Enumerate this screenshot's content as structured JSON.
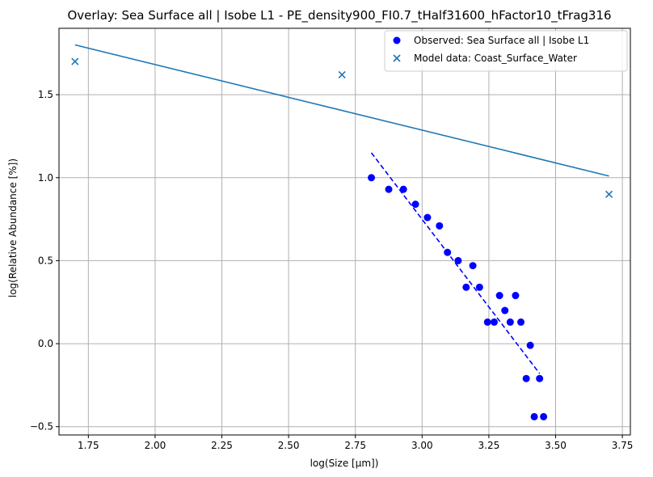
{
  "chart_data": {
    "type": "scatter",
    "title": "Overlay: Sea Surface all | Isobe L1 - PE_density900_FI0.7_tHalf31600_hFactor10_tFrag316",
    "xlabel": "log(Size [μm])",
    "ylabel": "log(Relative Abundance [%])",
    "xlim": [
      1.64,
      3.78
    ],
    "ylim": [
      -0.55,
      1.9
    ],
    "x_ticks": [
      1.75,
      2.0,
      2.25,
      2.5,
      2.75,
      3.0,
      3.25,
      3.5,
      3.75
    ],
    "x_tick_labels": [
      "1.75",
      "2.00",
      "2.25",
      "2.50",
      "2.75",
      "3.00",
      "3.25",
      "3.50",
      "3.75"
    ],
    "y_ticks": [
      -0.5,
      0.0,
      0.5,
      1.0,
      1.5
    ],
    "y_tick_labels": [
      "−0.5",
      "0.0",
      "0.5",
      "1.0",
      "1.5"
    ],
    "grid": true,
    "legend_position": "top-right",
    "colors": {
      "observed": "#0000ff",
      "model": "#1f77b4",
      "grid": "#b0b0b0"
    },
    "series": [
      {
        "name": "Observed: Sea Surface all | Isobe L1",
        "kind": "scatter",
        "marker": "circle",
        "x": [
          2.81,
          2.875,
          2.93,
          2.975,
          3.02,
          3.065,
          3.095,
          3.135,
          3.165,
          3.19,
          3.215,
          3.245,
          3.27,
          3.29,
          3.31,
          3.33,
          3.35,
          3.37,
          3.39,
          3.405,
          3.42,
          3.44,
          3.455
        ],
        "y": [
          1.0,
          0.93,
          0.93,
          0.84,
          0.76,
          0.71,
          0.55,
          0.5,
          0.34,
          0.47,
          0.34,
          0.13,
          0.13,
          0.29,
          0.2,
          0.13,
          0.29,
          0.13,
          -0.21,
          -0.01,
          -0.44,
          -0.21,
          -0.44
        ]
      },
      {
        "name": "Model data: Coast_Surface_Water",
        "kind": "scatter",
        "marker": "x",
        "x": [
          1.7,
          2.7,
          3.7
        ],
        "y": [
          1.7,
          1.62,
          0.9
        ]
      }
    ],
    "fit_lines": [
      {
        "series": "observed",
        "style": "dashed",
        "x": [
          2.81,
          3.44
        ],
        "y": [
          1.15,
          -0.18
        ]
      },
      {
        "series": "model",
        "style": "solid",
        "x": [
          1.7,
          3.7
        ],
        "y": [
          1.8,
          1.01
        ]
      }
    ]
  }
}
